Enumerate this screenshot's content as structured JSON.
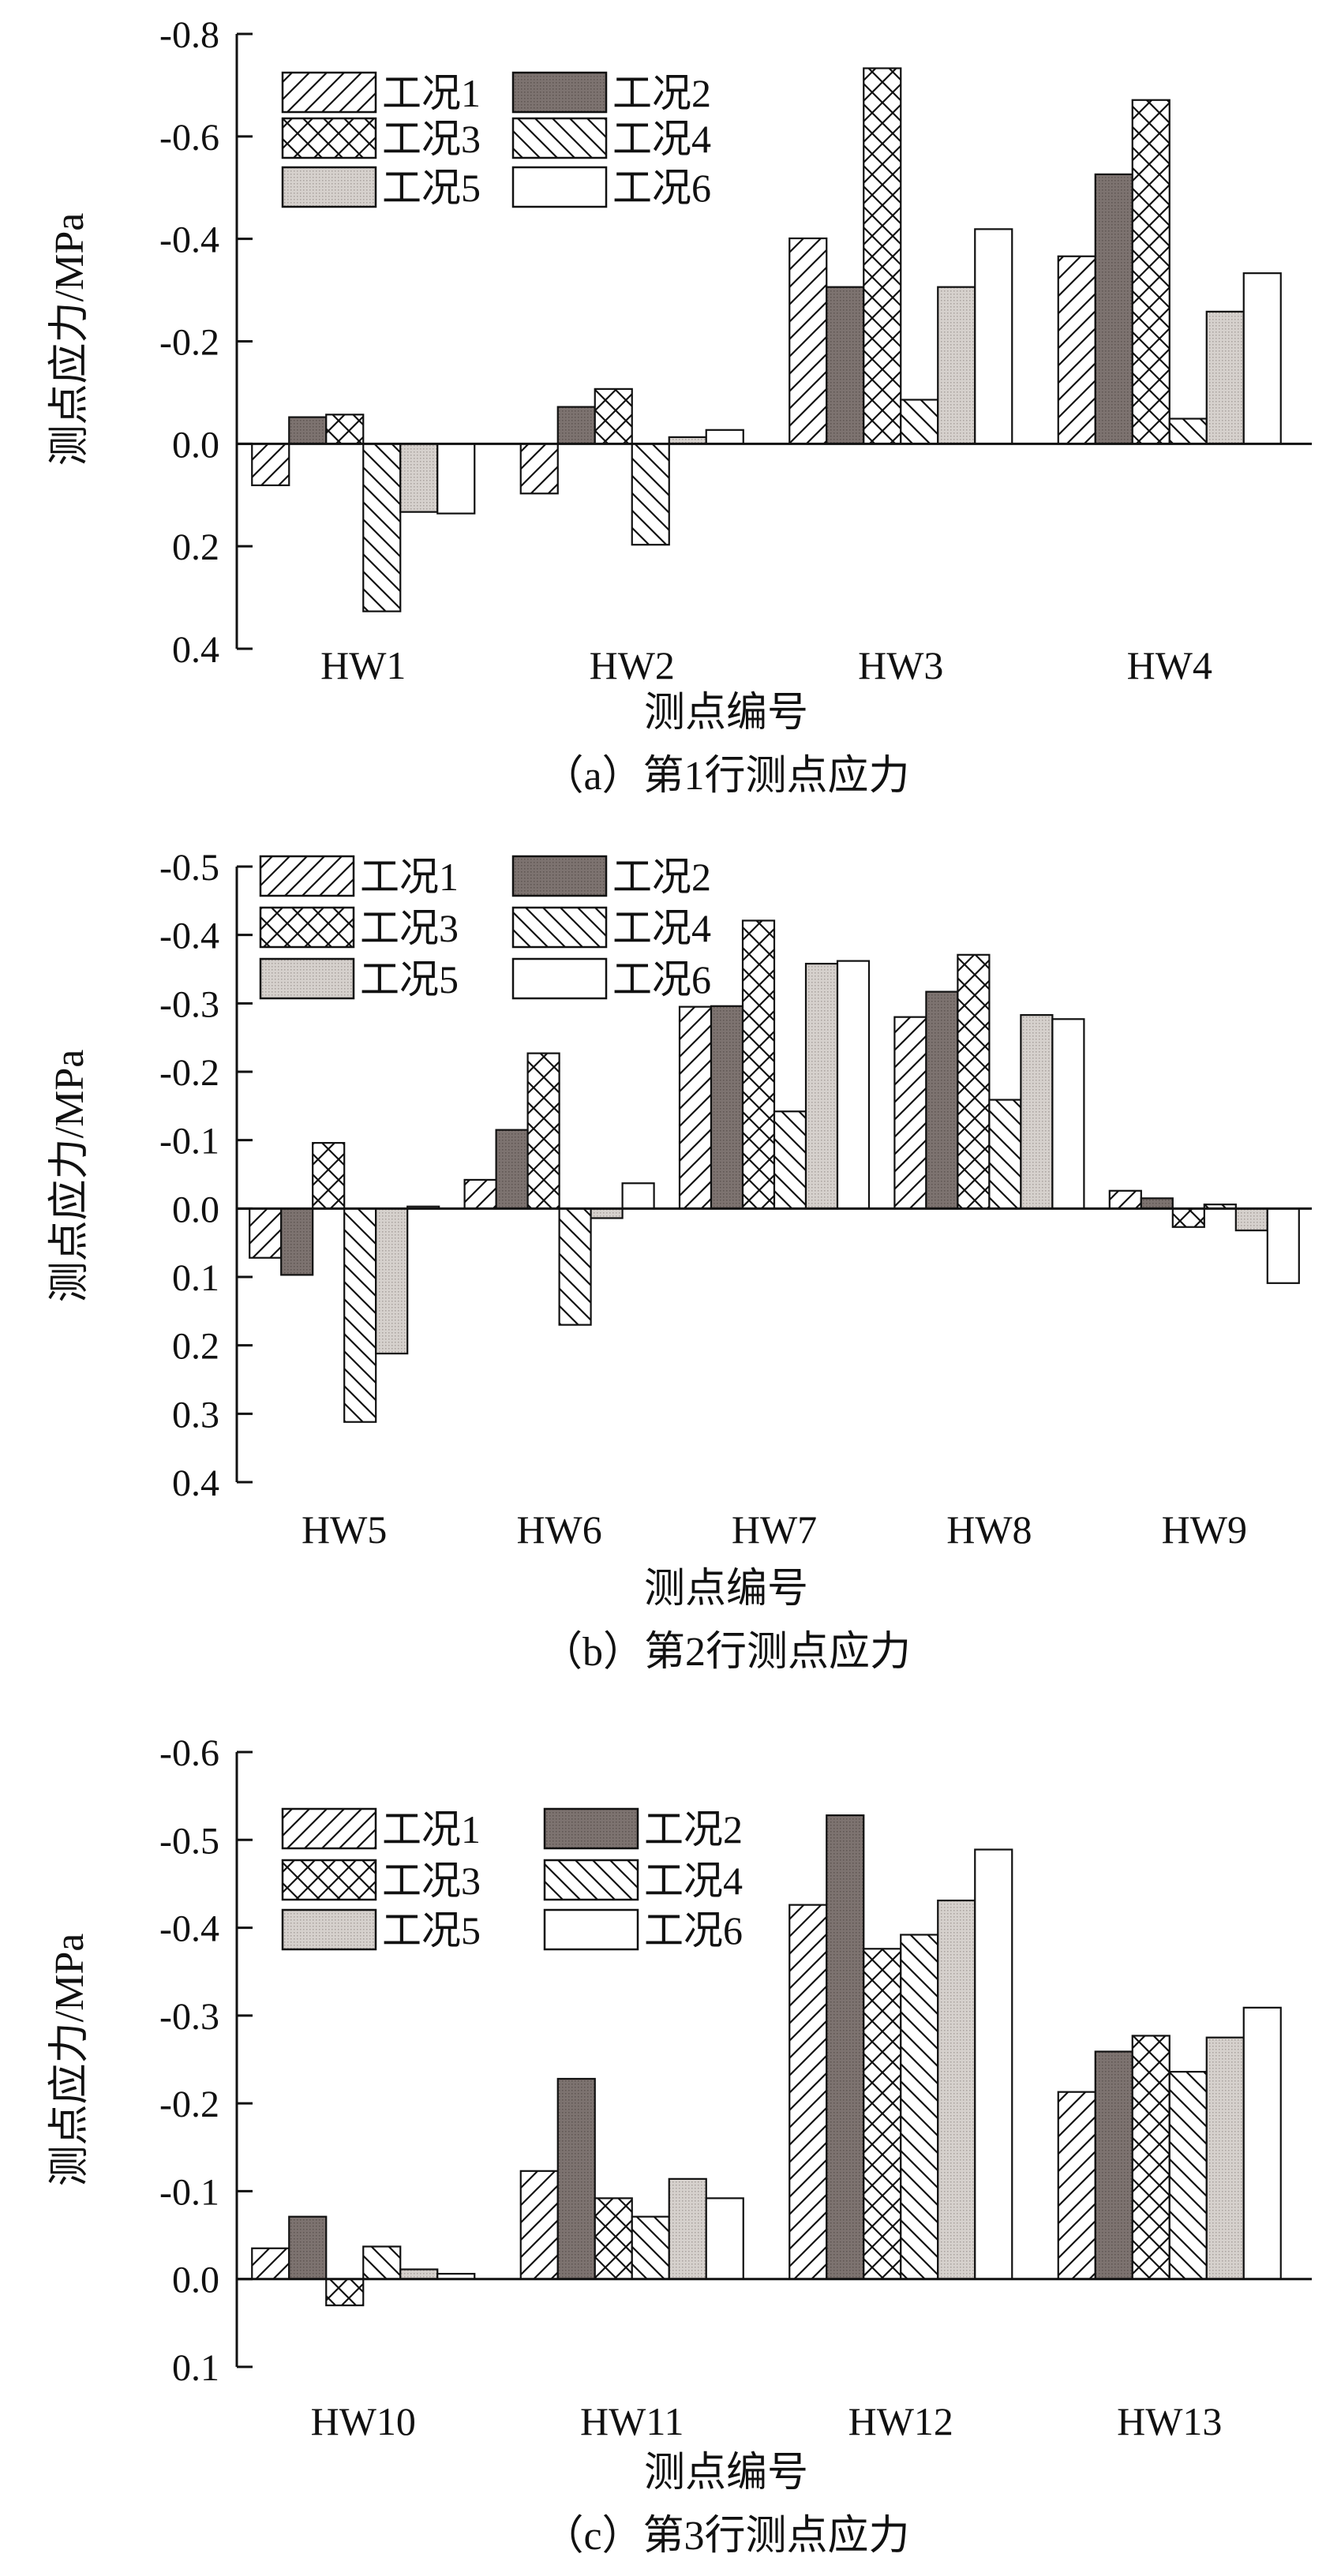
{
  "legend": [
    "工况1",
    "工况2",
    "工况3",
    "工况4",
    "工况5",
    "工况6"
  ],
  "colors": {
    "dark": "#7d7370",
    "light": "#cfcac6",
    "line": "#111111"
  },
  "patterns": [
    "hatch-forward",
    "dark-dotted",
    "crosshatch",
    "hatch-back",
    "light-dotted",
    "white"
  ],
  "chart_data": [
    {
      "type": "bar",
      "caption": "（a）第1行测点应力",
      "xlabel": "测点编号",
      "ylabel": "测点应力/MPa",
      "ylim": [
        -0.8,
        0.4
      ],
      "y_inverted_note": "negative up",
      "yticks": [
        -0.8,
        -0.6,
        -0.4,
        -0.2,
        0.0,
        0.2,
        0.4
      ],
      "ytick_labels": [
        "-0.8",
        "-0.6",
        "-0.4",
        "-0.2",
        "0.0",
        "0.2",
        "0.4"
      ],
      "categories": [
        "HW1",
        "HW2",
        "HW3",
        "HW4"
      ],
      "series": [
        {
          "name": "工况1",
          "values": [
            0.081,
            0.097,
            -0.401,
            -0.366
          ]
        },
        {
          "name": "工况2",
          "values": [
            -0.052,
            -0.072,
            -0.306,
            -0.526
          ]
        },
        {
          "name": "工况3",
          "values": [
            -0.057,
            -0.107,
            -0.733,
            -0.671
          ]
        },
        {
          "name": "工况4",
          "values": [
            0.327,
            0.197,
            -0.086,
            -0.049
          ]
        },
        {
          "name": "工况5",
          "values": [
            0.133,
            -0.013,
            -0.306,
            -0.258
          ]
        },
        {
          "name": "工况6",
          "values": [
            0.136,
            -0.027,
            -0.419,
            -0.333
          ]
        }
      ]
    },
    {
      "type": "bar",
      "caption": "（b）第2行测点应力",
      "xlabel": "测点编号",
      "ylabel": "测点应力/MPa",
      "ylim": [
        -0.5,
        0.4
      ],
      "yticks": [
        -0.5,
        -0.4,
        -0.3,
        -0.2,
        -0.1,
        0.0,
        0.1,
        0.2,
        0.3,
        0.4
      ],
      "ytick_labels": [
        "-0.5",
        "-0.4",
        "-0.3",
        "-0.2",
        "-0.1",
        "0.0",
        "0.1",
        "0.2",
        "0.3",
        "0.4"
      ],
      "categories": [
        "HW5",
        "HW6",
        "HW7",
        "HW8",
        "HW9"
      ],
      "series": [
        {
          "name": "工况1",
          "values": [
            0.072,
            -0.042,
            -0.295,
            -0.28,
            -0.026
          ]
        },
        {
          "name": "工况2",
          "values": [
            0.097,
            -0.115,
            -0.296,
            -0.317,
            -0.015
          ]
        },
        {
          "name": "工况3",
          "values": [
            -0.096,
            -0.227,
            -0.421,
            -0.371,
            0.027
          ]
        },
        {
          "name": "工况4",
          "values": [
            0.312,
            0.17,
            -0.142,
            -0.159,
            -0.006
          ]
        },
        {
          "name": "工况5",
          "values": [
            0.212,
            0.014,
            -0.358,
            -0.283,
            0.032
          ]
        },
        {
          "name": "工况6",
          "values": [
            -0.003,
            -0.037,
            -0.362,
            -0.277,
            0.109
          ]
        }
      ]
    },
    {
      "type": "bar",
      "caption": "（c）第3行测点应力",
      "xlabel": "测点编号",
      "ylabel": "测点应力/MPa",
      "ylim": [
        -0.6,
        0.1
      ],
      "yticks": [
        -0.6,
        -0.5,
        -0.4,
        -0.3,
        -0.2,
        -0.1,
        0.0,
        0.1
      ],
      "ytick_labels": [
        "-0.6",
        "-0.5",
        "-0.4",
        "-0.3",
        "-0.2",
        "-0.1",
        "0.0",
        "0.1"
      ],
      "categories": [
        "HW10",
        "HW11",
        "HW12",
        "HW13"
      ],
      "series": [
        {
          "name": "工况1",
          "values": [
            -0.035,
            -0.123,
            -0.426,
            -0.213
          ]
        },
        {
          "name": "工况2",
          "values": [
            -0.071,
            -0.228,
            -0.528,
            -0.259
          ]
        },
        {
          "name": "工况3",
          "values": [
            0.03,
            -0.092,
            -0.376,
            -0.277
          ]
        },
        {
          "name": "工况4",
          "values": [
            -0.037,
            -0.071,
            -0.392,
            -0.236
          ]
        },
        {
          "name": "工况5",
          "values": [
            -0.011,
            -0.114,
            -0.431,
            -0.275
          ]
        },
        {
          "name": "工况6",
          "values": [
            -0.006,
            -0.092,
            -0.489,
            -0.309
          ]
        }
      ]
    }
  ]
}
